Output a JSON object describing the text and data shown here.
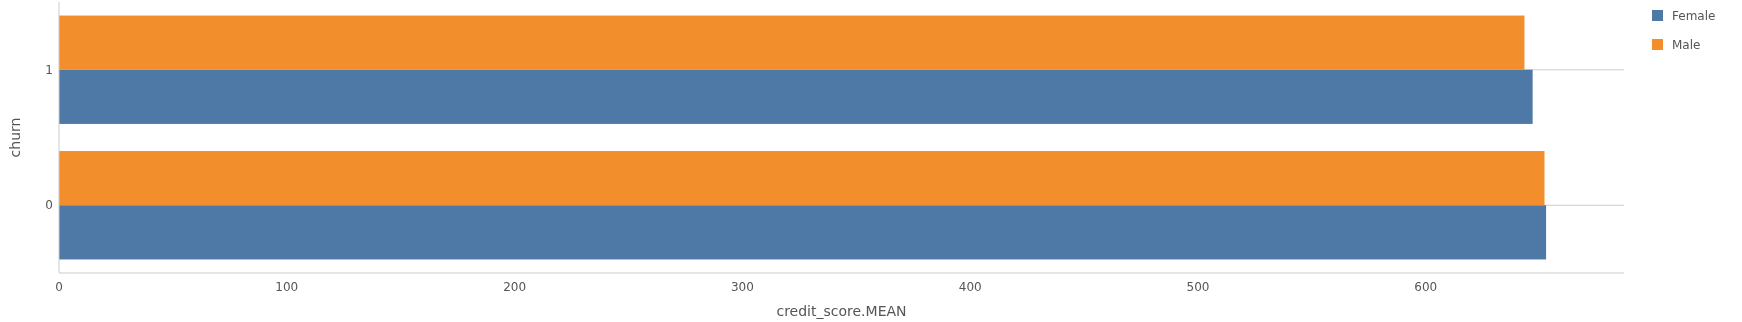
{
  "chart_data": {
    "type": "bar",
    "orientation": "horizontal",
    "xlabel": "credit_score.MEAN",
    "ylabel": "churn",
    "categories": [
      "1",
      "0"
    ],
    "series": [
      {
        "name": "Female",
        "color": "#4e79a7",
        "values": [
          646.9,
          652.8
        ]
      },
      {
        "name": "Male",
        "color": "#f28e2b",
        "values": [
          643.3,
          652.1
        ]
      }
    ],
    "xlim": [
      0,
      687
    ],
    "xticks": [
      0,
      100,
      200,
      300,
      400,
      500,
      600
    ],
    "grid": "y",
    "legend": "top right"
  }
}
